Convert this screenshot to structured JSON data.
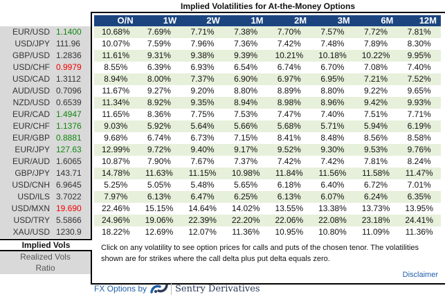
{
  "title": "Implied Volatilities for At-the-Money Options",
  "columns": [
    "O/N",
    "1W",
    "2W",
    "1M",
    "2M",
    "3M",
    "6M",
    "12M"
  ],
  "pairs": [
    {
      "name": "EUR/USD",
      "price": "1.1400",
      "dir": "up",
      "vols": [
        "10.68%",
        "7.69%",
        "7.71%",
        "7.38%",
        "7.70%",
        "7.57%",
        "7.72%",
        "7.81%"
      ]
    },
    {
      "name": "USD/JPY",
      "price": "111.96",
      "dir": "flat",
      "vols": [
        "10.07%",
        "7.59%",
        "7.96%",
        "7.36%",
        "7.42%",
        "7.48%",
        "7.89%",
        "8.30%"
      ]
    },
    {
      "name": "GBP/USD",
      "price": "1.2836",
      "dir": "flat",
      "vols": [
        "11.61%",
        "9.31%",
        "9.38%",
        "9.39%",
        "10.21%",
        "10.18%",
        "10.22%",
        "9.95%"
      ]
    },
    {
      "name": "USD/CHF",
      "price": "0.9979",
      "dir": "down",
      "vols": [
        "8.55%",
        "6.39%",
        "6.93%",
        "6.54%",
        "6.74%",
        "6.70%",
        "7.08%",
        "7.40%"
      ]
    },
    {
      "name": "USD/CAD",
      "price": "1.3112",
      "dir": "flat",
      "vols": [
        "8.94%",
        "8.00%",
        "7.37%",
        "6.90%",
        "6.97%",
        "6.95%",
        "7.21%",
        "7.52%"
      ]
    },
    {
      "name": "AUD/USD",
      "price": "0.7096",
      "dir": "flat",
      "vols": [
        "11.67%",
        "9.27%",
        "9.20%",
        "8.80%",
        "8.89%",
        "8.80%",
        "9.22%",
        "9.65%"
      ]
    },
    {
      "name": "NZD/USD",
      "price": "0.6539",
      "dir": "flat",
      "vols": [
        "11.34%",
        "8.92%",
        "9.35%",
        "8.94%",
        "8.98%",
        "8.96%",
        "9.42%",
        "9.93%"
      ]
    },
    {
      "name": "EUR/CAD",
      "price": "1.4947",
      "dir": "up",
      "vols": [
        "11.65%",
        "8.36%",
        "7.75%",
        "7.53%",
        "7.47%",
        "7.40%",
        "7.51%",
        "7.71%"
      ]
    },
    {
      "name": "EUR/CHF",
      "price": "1.1376",
      "dir": "up",
      "vols": [
        "9.03%",
        "5.92%",
        "5.64%",
        "5.66%",
        "5.68%",
        "5.71%",
        "5.94%",
        "6.19%"
      ]
    },
    {
      "name": "EUR/GBP",
      "price": "0.8881",
      "dir": "up",
      "vols": [
        "9.68%",
        "6.74%",
        "6.73%",
        "7.15%",
        "8.41%",
        "8.48%",
        "8.56%",
        "8.58%"
      ]
    },
    {
      "name": "EUR/JPY",
      "price": "127.63",
      "dir": "up",
      "vols": [
        "12.99%",
        "9.72%",
        "9.40%",
        "9.17%",
        "9.52%",
        "9.30%",
        "9.53%",
        "9.76%"
      ]
    },
    {
      "name": "EUR/AUD",
      "price": "1.6065",
      "dir": "flat",
      "vols": [
        "10.87%",
        "7.90%",
        "7.67%",
        "7.37%",
        "7.42%",
        "7.42%",
        "7.81%",
        "8.24%"
      ]
    },
    {
      "name": "GBP/JPY",
      "price": "143.71",
      "dir": "flat",
      "vols": [
        "14.78%",
        "11.63%",
        "11.15%",
        "10.98%",
        "11.84%",
        "11.56%",
        "11.58%",
        "11.47%"
      ]
    },
    {
      "name": "USD/CNH",
      "price": "6.9645",
      "dir": "flat",
      "vols": [
        "5.25%",
        "5.05%",
        "5.48%",
        "5.65%",
        "6.18%",
        "6.40%",
        "6.72%",
        "7.01%"
      ]
    },
    {
      "name": "USD/ILS",
      "price": "3.7022",
      "dir": "flat",
      "vols": [
        "7.97%",
        "6.13%",
        "6.47%",
        "6.25%",
        "6.13%",
        "6.07%",
        "6.24%",
        "6.35%"
      ]
    },
    {
      "name": "USD/MXN",
      "price": "19.690",
      "dir": "down",
      "vols": [
        "22.46%",
        "15.15%",
        "14.64%",
        "14.02%",
        "13.55%",
        "13.38%",
        "13.73%",
        "13.95%"
      ]
    },
    {
      "name": "USD/TRY",
      "price": "5.5866",
      "dir": "flat",
      "vols": [
        "24.96%",
        "19.06%",
        "22.39%",
        "22.20%",
        "22.06%",
        "22.08%",
        "23.18%",
        "24.41%"
      ]
    },
    {
      "name": "XAU/USD",
      "price": "1230.9",
      "dir": "flat",
      "vols": [
        "18.22%",
        "12.69%",
        "12.07%",
        "11.36%",
        "10.95%",
        "10.80%",
        "11.09%",
        "11.36%"
      ]
    }
  ],
  "tabs": {
    "active": "Implied Vols",
    "realized": "Realized Vols",
    "ratio": "Ratio"
  },
  "note": "Click on any volatility to see option prices for calls and puts of the chosen tenor. The volatilities shown are for strikes where the call delta plus put delta equals zero.",
  "disclaimer": "Disclaimer",
  "footer": {
    "prefix": "FX Options by",
    "brand": "Sentry Derivatives",
    "logo_icon": "sentry-logo-icon"
  },
  "colors": {
    "header": "#1c4580",
    "alt_row": "#e7f0db",
    "up": "#11860f",
    "down": "#f00000",
    "panel": "#d9d9d9"
  }
}
